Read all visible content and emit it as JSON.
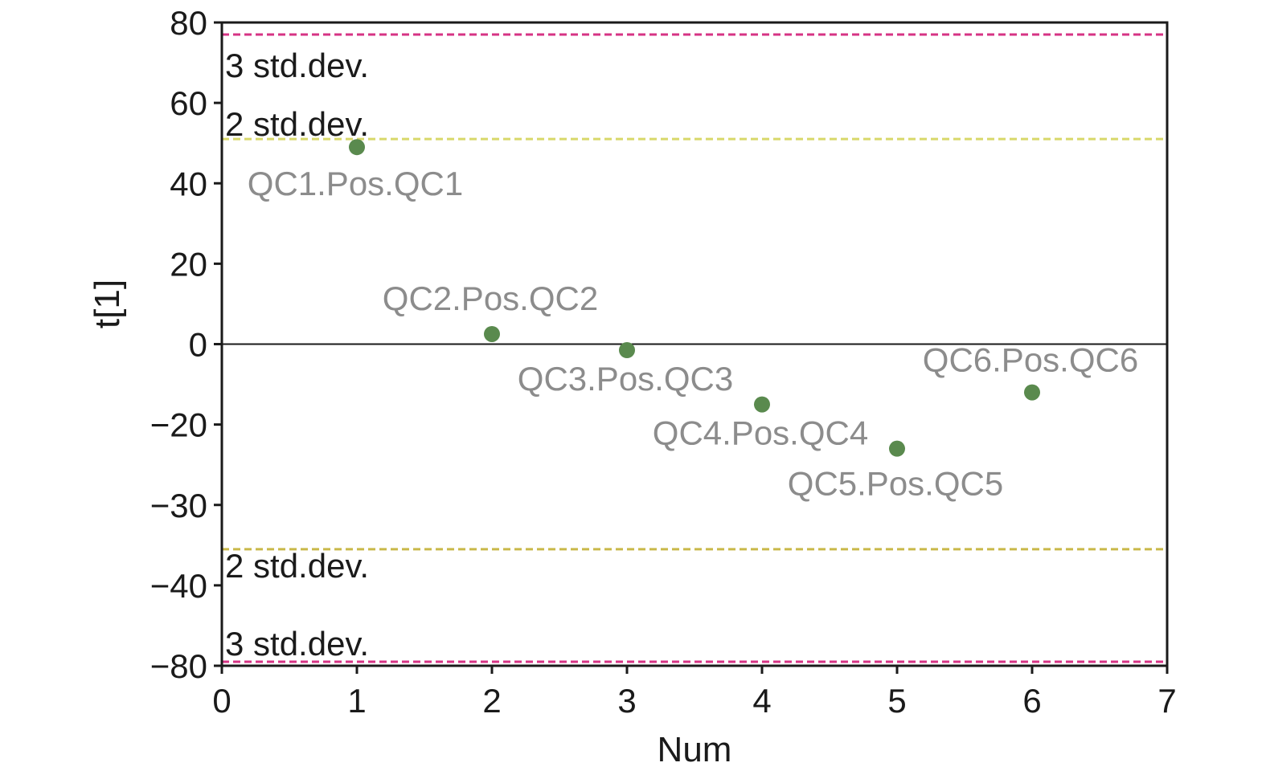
{
  "chart_data": {
    "type": "scatter",
    "xlabel": "Num",
    "ylabel": "t[1]",
    "xlim": [
      0,
      7
    ],
    "x_ticks": [
      "0",
      "1",
      "2",
      "3",
      "4",
      "5",
      "6",
      "7"
    ],
    "x_tick_values": [
      0,
      1,
      2,
      3,
      4,
      5,
      6,
      7
    ],
    "y_ticks": [
      "80",
      "60",
      "40",
      "20",
      "0",
      "−20",
      "−30",
      "−40",
      "−80"
    ],
    "zero_line": true,
    "grid": false,
    "reference_lines": [
      {
        "label": "3 std.dev.",
        "value": 77,
        "color": "#d63384"
      },
      {
        "label": "2 std.dev.",
        "value": 51,
        "color": "#d8d86a"
      },
      {
        "label": "2 std.dev.",
        "value": -35.5,
        "color": "#c9b94a"
      },
      {
        "label": "3 std.dev.",
        "value": -78,
        "color": "#d63384"
      }
    ],
    "points": [
      {
        "label": "QC1.Pos.QC1",
        "x": 1,
        "y": 49
      },
      {
        "label": "QC2.Pos.QC2",
        "x": 2,
        "y": 2.5
      },
      {
        "label": "QC3.Pos.QC3",
        "x": 3,
        "y": -1.5
      },
      {
        "label": "QC4.Pos.QC4",
        "x": 4,
        "y": -15
      },
      {
        "label": "QC5.Pos.QC5",
        "x": 5,
        "y": -23
      },
      {
        "label": "QC6.Pos.QC6",
        "x": 6,
        "y": -12
      }
    ],
    "point_color": "#5a8a4e",
    "point_label_color": "#8c8c8c"
  }
}
